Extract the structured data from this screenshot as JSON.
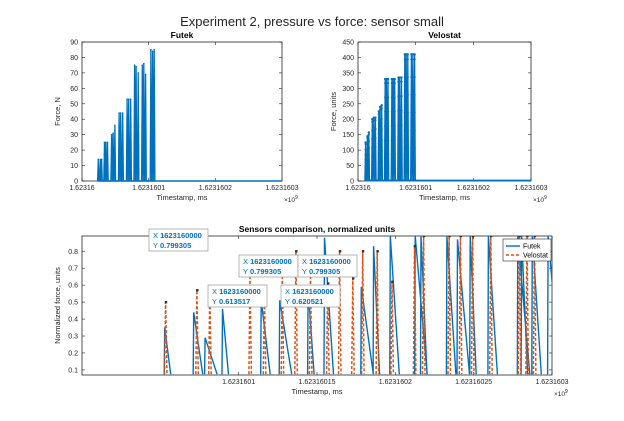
{
  "figure": {
    "title": "Experiment 2, pressure vs force: sensor small"
  },
  "colors": {
    "futek": "#0072bd",
    "velostat": "#d95319",
    "datatip": "#0072bd",
    "axis": "#262626"
  },
  "chart_data": [
    {
      "id": "futek",
      "type": "line",
      "title": "Futek",
      "xlabel": "Timestamp, ms",
      "ylabel": "Force, N",
      "xlim": [
        1.62316,
        1.6231603
      ],
      "ylim": [
        0,
        90
      ],
      "x_exponent": "×10",
      "x_exponent_power": "9",
      "xticks": [
        1.62316,
        1.6231601,
        1.6231602,
        1.6231603
      ],
      "xtick_labels": [
        "1.62316",
        "1.6231601",
        "1.6231602",
        "1.6231603"
      ],
      "yticks": [
        0,
        10,
        20,
        30,
        40,
        50,
        60,
        70,
        80,
        90
      ],
      "series": [
        {
          "peaks": [
            {
              "t": 1.6231600244,
              "v": 14
            },
            {
              "t": 1.6231600274,
              "v": 14
            },
            {
              "t": 1.6231600294,
              "v": 14
            },
            {
              "t": 1.6231600337,
              "v": 25
            },
            {
              "t": 1.6231600357,
              "v": 25
            },
            {
              "t": 1.6231600382,
              "v": 25
            },
            {
              "t": 1.6231600444,
              "v": 30
            },
            {
              "t": 1.6231600467,
              "v": 31
            },
            {
              "t": 1.6231600493,
              "v": 36
            },
            {
              "t": 1.6231600557,
              "v": 44
            },
            {
              "t": 1.623160058,
              "v": 44
            },
            {
              "t": 1.623160061,
              "v": 44
            },
            {
              "t": 1.6231600676,
              "v": 53
            },
            {
              "t": 1.6231600701,
              "v": 53
            },
            {
              "t": 1.623160073,
              "v": 53
            },
            {
              "t": 1.6231600789,
              "v": 75
            },
            {
              "t": 1.6231600811,
              "v": 74
            },
            {
              "t": 1.6231600843,
              "v": 70
            },
            {
              "t": 1.6231600905,
              "v": 75
            },
            {
              "t": 1.6231600927,
              "v": 76
            },
            {
              "t": 1.6231600954,
              "v": 69
            },
            {
              "t": 1.6231601033,
              "v": 85
            },
            {
              "t": 1.6231601059,
              "v": 84
            },
            {
              "t": 1.6231601083,
              "v": 85
            }
          ]
        }
      ]
    },
    {
      "id": "velostat",
      "type": "line",
      "title": "Velostat",
      "xlabel": "Timestamp, ms",
      "ylabel": "Force, units",
      "xlim": [
        1.62316,
        1.6231603
      ],
      "ylim": [
        0,
        450
      ],
      "x_exponent": "×10",
      "x_exponent_power": "9",
      "xticks": [
        1.62316,
        1.6231601,
        1.6231602,
        1.6231603
      ],
      "xtick_labels": [
        "1.62316",
        "1.6231601",
        "1.6231602",
        "1.6231603"
      ],
      "yticks": [
        0,
        50,
        100,
        150,
        200,
        250,
        300,
        350,
        400,
        450
      ],
      "series": [
        {
          "peaks": [
            {
              "t": 1.6231600132,
              "v": 125
            },
            {
              "t": 1.6231600163,
              "v": 145
            },
            {
              "t": 1.6231600188,
              "v": 157
            },
            {
              "t": 1.6231600248,
              "v": 200
            },
            {
              "t": 1.6231600274,
              "v": 205
            },
            {
              "t": 1.6231600302,
              "v": 205
            },
            {
              "t": 1.6231600361,
              "v": 225
            },
            {
              "t": 1.6231600384,
              "v": 240
            },
            {
              "t": 1.6231600411,
              "v": 245
            },
            {
              "t": 1.6231600471,
              "v": 330
            },
            {
              "t": 1.6231600493,
              "v": 330
            },
            {
              "t": 1.6231600521,
              "v": 330
            },
            {
              "t": 1.6231600587,
              "v": 330
            },
            {
              "t": 1.6231600612,
              "v": 330
            },
            {
              "t": 1.6231600636,
              "v": 330
            },
            {
              "t": 1.6231600701,
              "v": 335
            },
            {
              "t": 1.6231600723,
              "v": 335
            },
            {
              "t": 1.6231600755,
              "v": 335
            },
            {
              "t": 1.6231600812,
              "v": 410
            },
            {
              "t": 1.6231600835,
              "v": 410
            },
            {
              "t": 1.6231600863,
              "v": 410
            },
            {
              "t": 1.6231600926,
              "v": 410
            },
            {
              "t": 1.6231600952,
              "v": 410
            },
            {
              "t": 1.6231600982,
              "v": 410
            }
          ]
        }
      ]
    },
    {
      "id": "comparison",
      "type": "line",
      "title": "Sensors comparison, normalized units",
      "xlabel": "Timestamp, ms",
      "ylabel": "Normalized force, units",
      "xlim": [
        1.62316,
        1.6231603
      ],
      "ylim": [
        0.07,
        0.89
      ],
      "x_exponent": "×10",
      "x_exponent_power": "9",
      "xticks": [
        1.6231601,
        1.62316015,
        1.6231602,
        1.62316025,
        1.6231603
      ],
      "xtick_labels": [
        "1.6231601",
        "1.62316015",
        "1.6231602",
        "1.62316025",
        "1.6231603"
      ],
      "yticks": [
        0.1,
        0.2,
        0.3,
        0.4,
        0.5,
        0.6,
        0.7,
        0.8
      ],
      "legend": {
        "location": "top-right",
        "entries": [
          "Futek",
          "Velostat"
        ]
      },
      "series": [
        {
          "name": "Futek",
          "style": "solid",
          "peaks": [
            {
              "t": 1.6231600528,
              "v": 0.35
            },
            {
              "t": 1.6231600713,
              "v": 0.44
            },
            {
              "t": 1.6231600786,
              "v": 0.29
            },
            {
              "t": 1.6231600897,
              "v": 0.46
            },
            {
              "t": 1.6231601144,
              "v": 0.51
            },
            {
              "t": 1.6231601262,
              "v": 0.51
            },
            {
              "t": 1.6231601443,
              "v": 0.58
            },
            {
              "t": 1.6231601548,
              "v": 0.88
            },
            {
              "t": 1.6231601783,
              "v": 0.59
            },
            {
              "t": 1.6231601861,
              "v": 0.83
            },
            {
              "t": 1.6231601968,
              "v": 0.89
            },
            {
              "t": 1.6231602127,
              "v": 0.89
            },
            {
              "t": 1.6231602164,
              "v": 0.89
            },
            {
              "t": 1.6231602329,
              "v": 0.89
            },
            {
              "t": 1.6231602397,
              "v": 0.87
            },
            {
              "t": 1.6231602478,
              "v": 0.89
            },
            {
              "t": 1.6231602594,
              "v": 0.89
            },
            {
              "t": 1.6231602782,
              "v": 0.89
            },
            {
              "t": 1.6231602806,
              "v": 0.89
            },
            {
              "t": 1.6231602874,
              "v": 0.89
            },
            {
              "t": 1.6231602975,
              "v": 0.89
            },
            {
              "t": 1.6231603046,
              "v": 0.89
            }
          ]
        },
        {
          "name": "Velostat",
          "style": "dashed",
          "peaks": [
            {
              "t": 1.6231600536,
              "v": 0.5
            },
            {
              "t": 1.6231600736,
              "v": 0.57
            },
            {
              "t": 1.6231600818,
              "v": 0.57
            },
            {
              "t": 1.6231601075,
              "v": 0.66
            },
            {
              "t": 1.6231601167,
              "v": 0.57
            },
            {
              "t": 1.6231601281,
              "v": 0.66
            },
            {
              "t": 1.6231601368,
              "v": 0.8
            },
            {
              "t": 1.6231601461,
              "v": 0.66
            },
            {
              "t": 1.6231601571,
              "v": 0.61
            },
            {
              "t": 1.6231601647,
              "v": 0.8
            },
            {
              "t": 1.6231601731,
              "v": 0.64
            },
            {
              "t": 1.6231601794,
              "v": 0.8
            },
            {
              "t": 1.6231601887,
              "v": 0.8
            },
            {
              "t": 1.6231601981,
              "v": 0.62
            },
            {
              "t": 1.6231602125,
              "v": 0.83
            },
            {
              "t": 1.6231602183,
              "v": 0.89
            },
            {
              "t": 1.6231602346,
              "v": 0.89
            },
            {
              "t": 1.6231602418,
              "v": 0.89
            },
            {
              "t": 1.6231602496,
              "v": 0.89
            },
            {
              "t": 1.6231602612,
              "v": 0.89
            },
            {
              "t": 1.6231602794,
              "v": 0.89
            },
            {
              "t": 1.6231602843,
              "v": 0.89
            },
            {
              "t": 1.6231602891,
              "v": 0.89
            },
            {
              "t": 1.6231603061,
              "v": 0.89
            }
          ]
        }
      ],
      "datatips": [
        {
          "x": "1623160000",
          "y": "0.799305",
          "px": 1.6231601368,
          "py": 0.8
        },
        {
          "x": "1623160000",
          "y": "0.799305",
          "px": 1.6231601647,
          "py": 0.8
        },
        {
          "x": "1623160000",
          "y": "0.799305",
          "px": 1.6231601887,
          "py": 0.8
        },
        {
          "x": "1623160000",
          "y": "0.613517",
          "px": 1.6231601571,
          "py": 0.61
        },
        {
          "x": "1623160000",
          "y": "0.620521",
          "px": 1.6231601981,
          "py": 0.62
        }
      ]
    }
  ]
}
